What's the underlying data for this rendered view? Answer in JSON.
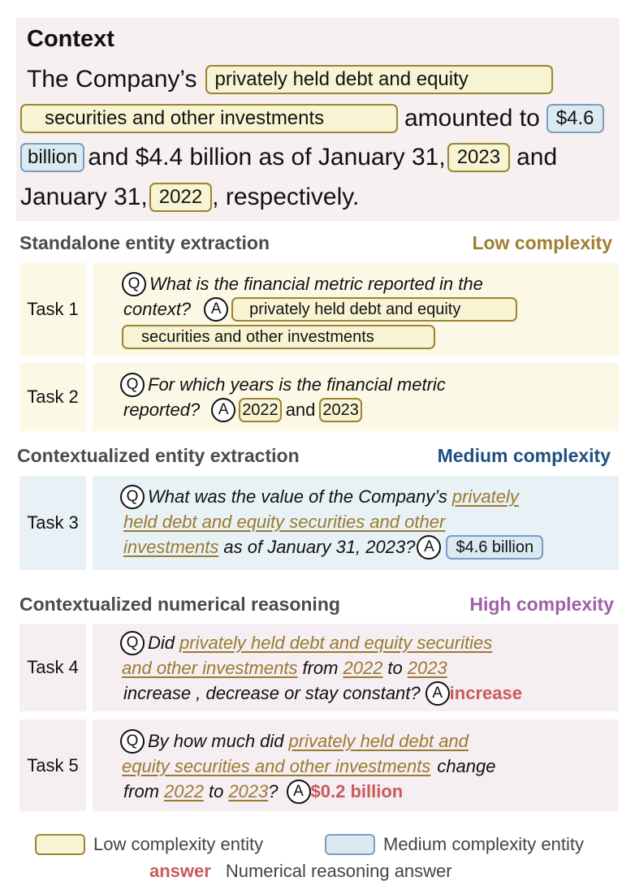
{
  "context": {
    "title": "Context",
    "line1_text": "The Company’s",
    "entity_debt_1": "privately held debt and equity",
    "entity_debt_2": "securities and other investments",
    "amounted_to": "amounted to",
    "entity_value_1": "$4.6",
    "entity_value_2": "billion",
    "mid_text": "and $4.4 billion as of January 31,",
    "entity_2023": "2023",
    "and_text": "and",
    "jan31_text": "January 31,",
    "entity_2022": "2022",
    "respectively_text": ", respectively."
  },
  "sections": [
    {
      "title": "Standalone entity extraction",
      "complexity": "Low complexity",
      "complexity_color": "#a07d30",
      "bg": "#fcf8e6"
    },
    {
      "title": "Contextualized entity extraction",
      "complexity": "Medium complexity",
      "complexity_color": "#1f4f80",
      "bg": "#e8f1f6"
    },
    {
      "title": "Contextualized numerical reasoning",
      "complexity": "High complexity",
      "complexity_color": "#a060a8",
      "bg": "#f5eef3"
    }
  ],
  "tasks": {
    "q_marker": "Q",
    "a_marker": "A",
    "task1": {
      "label": "Task 1",
      "q_line1": "What is the financial metric reported in the",
      "q_line2": "context?",
      "ans_1": "privately held debt and equity",
      "ans_2": "securities and other investments"
    },
    "task2": {
      "label": "Task 2",
      "q_line1": "For which years is the financial metric",
      "q_line2": "reported?",
      "ans_a": "2022",
      "and": "and",
      "ans_b": "2023"
    },
    "task3": {
      "label": "Task 3",
      "q_line1_a": "What was the value of the Company’s",
      "q_line1_ul": "privately",
      "q_line2_ul": "held debt and equity securities and other",
      "q_line3_ul": "investments",
      "q_line3_b": "as of January 31, 2023?",
      "answer": "$4.6 billion"
    },
    "task4": {
      "label": "Task 4",
      "q_line1_a": "Did",
      "q_line1_ul": "privately held debt and equity securities",
      "q_line2_ul": "and other investments",
      "q_line2_b": "from",
      "q_line2_y1": "2022",
      "q_line2_to": "to",
      "q_line2_y2": "2023",
      "q_line3": "increase , decrease or stay constant?",
      "answer": "increase"
    },
    "task5": {
      "label": "Task 5",
      "q_line1_a": "By how much did",
      "q_line1_ul": "privately held debt and",
      "q_line2_ul": "equity securities and other investments",
      "q_line2_b": "change",
      "q_line3_a": "from",
      "q_line3_y1": "2022",
      "q_line3_to": "to",
      "q_line3_y2": "2023",
      "q_line3_q": "?",
      "answer": "$0.2 billion"
    }
  },
  "legend": {
    "low": "Low complexity entity",
    "medium": "Medium complexity entity",
    "answer_word": "answer",
    "answer_desc": "Numerical reasoning answer"
  }
}
